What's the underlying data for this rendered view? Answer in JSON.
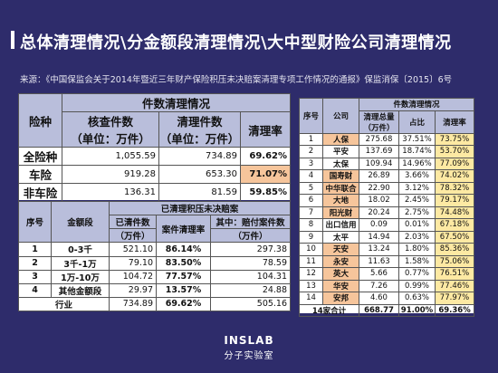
{
  "header": {
    "title": "总体清理情况\\分金额段清理情况\\大中型财险公司清理情况",
    "source": "来源：《中国保监会关于2014年暨近三年财产保险积压未决赔案清理专项工作情况的通报》保监消保〔2015〕6号"
  },
  "table1": {
    "group_header": "件数清理情况",
    "col_category": "险种",
    "col_verified": "核查件数",
    "col_verified_unit": "（单位：万件）",
    "col_cleared": "清理件数",
    "col_cleared_unit": "（单位：万件）",
    "col_rate": "清理率",
    "rows": [
      {
        "category": "全险种",
        "verified": "1,055.59",
        "cleared": "734.89",
        "rate": "69.62%"
      },
      {
        "category": "车险",
        "verified": "919.28",
        "cleared": "653.30",
        "rate": "71.07%"
      },
      {
        "category": "非车险",
        "verified": "136.31",
        "cleared": "81.59",
        "rate": "59.85%"
      }
    ]
  },
  "table2": {
    "group_header": "已清理积压未决赔案",
    "col_no": "序号",
    "col_range": "金额段",
    "col_count": "已清件数",
    "col_count_unit": "（万件）",
    "col_rate": "案件清理率",
    "col_pay": "其中：赔付案件数",
    "col_pay_unit": "（万件）",
    "rows": [
      {
        "no": "1",
        "range": "0-3千",
        "count": "521.10",
        "rate": "86.14%",
        "pay": "297.38"
      },
      {
        "no": "2",
        "range": "3千-1万",
        "count": "79.10",
        "rate": "83.50%",
        "pay": "78.59"
      },
      {
        "no": "3",
        "range": "1万-10万",
        "count": "104.72",
        "rate": "77.57%",
        "pay": "104.31"
      },
      {
        "no": "4",
        "range": "其他金额段",
        "count": "29.97",
        "rate": "13.57%",
        "pay": "24.88"
      }
    ],
    "total": {
      "label": "行业",
      "count": "734.89",
      "rate": "69.62%",
      "pay": "505.16"
    }
  },
  "table3": {
    "group_header": "件数清理情况",
    "col_no": "序号",
    "col_company": "公司",
    "col_total": "清理总量",
    "col_total_unit": "（万件）",
    "col_share": "占比",
    "col_rate": "清理率",
    "rows": [
      {
        "no": "1",
        "company": "人保",
        "total": "275.68",
        "share": "37.51%",
        "rate": "73.75%"
      },
      {
        "no": "2",
        "company": "平安",
        "total": "137.69",
        "share": "18.74%",
        "rate": "53.70%"
      },
      {
        "no": "3",
        "company": "太保",
        "total": "109.94",
        "share": "14.96%",
        "rate": "77.09%"
      },
      {
        "no": "4",
        "company": "国寿财",
        "total": "26.89",
        "share": "3.66%",
        "rate": "74.02%"
      },
      {
        "no": "5",
        "company": "中华联合",
        "total": "22.90",
        "share": "3.12%",
        "rate": "78.32%"
      },
      {
        "no": "6",
        "company": "大地",
        "total": "18.02",
        "share": "2.45%",
        "rate": "79.17%"
      },
      {
        "no": "7",
        "company": "阳光财",
        "total": "20.24",
        "share": "2.75%",
        "rate": "74.48%"
      },
      {
        "no": "8",
        "company": "出口信用",
        "total": "0.09",
        "share": "0.01%",
        "rate": "67.18%"
      },
      {
        "no": "9",
        "company": "太平",
        "total": "14.94",
        "share": "2.03%",
        "rate": "67.50%"
      },
      {
        "no": "10",
        "company": "天安",
        "total": "13.24",
        "share": "1.80%",
        "rate": "85.36%"
      },
      {
        "no": "11",
        "company": "永安",
        "total": "11.63",
        "share": "1.58%",
        "rate": "75.06%"
      },
      {
        "no": "12",
        "company": "英大",
        "total": "5.66",
        "share": "0.77%",
        "rate": "76.51%"
      },
      {
        "no": "13",
        "company": "华安",
        "total": "7.26",
        "share": "0.99%",
        "rate": "77.46%"
      },
      {
        "no": "14",
        "company": "安邦",
        "total": "4.60",
        "share": "0.63%",
        "rate": "77.97%"
      }
    ],
    "total": {
      "label": "14家合计",
      "total": "668.77",
      "share": "91.00%",
      "rate": "69.36%"
    }
  },
  "footer": {
    "logo": "INSLAB",
    "logo_sub": "分子实验室"
  },
  "colors": {
    "background": "#2e2c6b",
    "header_fill": "#b9bedb",
    "orange_highlight": "#f6c59b",
    "yellow_highlight": "#fde9a3"
  }
}
